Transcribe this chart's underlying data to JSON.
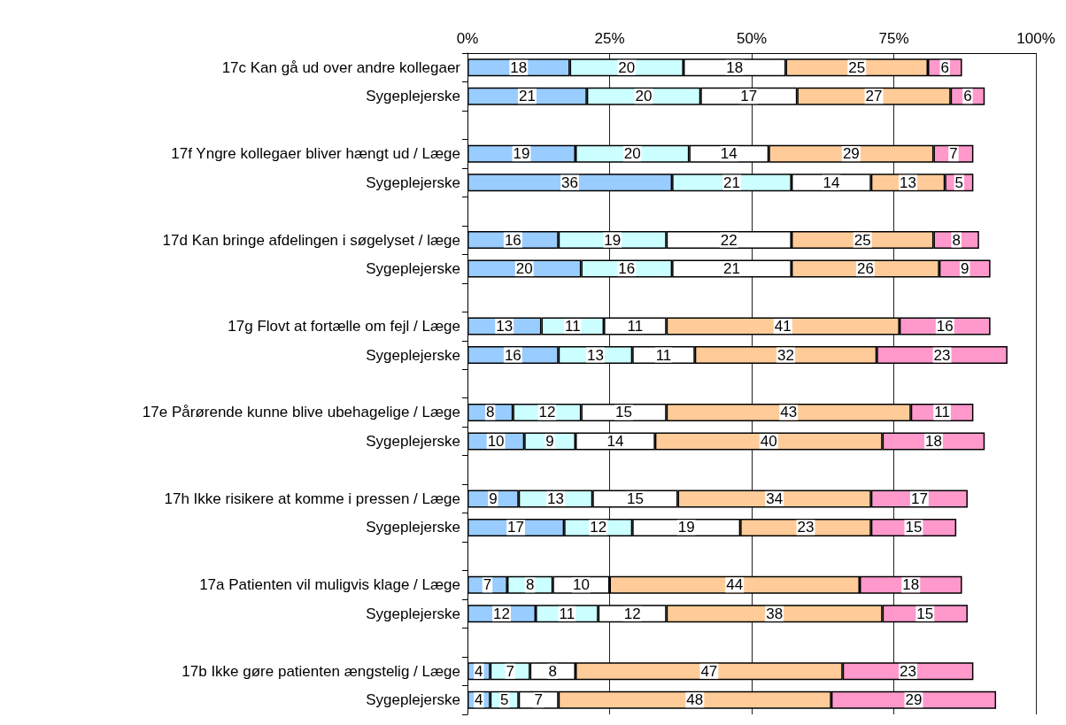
{
  "chart_data": {
    "type": "bar",
    "orientation": "horizontal",
    "stacked": true,
    "data_labels": true,
    "grid": "x",
    "categories": [
      "17c Kan gå ud over andre kollegaer",
      "Sygeplejerske",
      null,
      "17f Yngre kollegaer bliver hængt ud / Læge",
      "Sygeplejerske",
      null,
      "17d Kan bringe afdelingen i søgelyset / læge",
      "Sygeplejerske",
      null,
      "17g Flovt at fortælle om fejl / Læge",
      "Sygeplejerske",
      null,
      "17e Pårørende kunne blive ubehagelige / Læge",
      "Sygeplejerske",
      null,
      "17h Ikke risikere at komme i pressen / Læge",
      "Sygeplejerske",
      null,
      "17a Patienten vil muligvis klage / Læge",
      "Sygeplejerske",
      null,
      "17b Ikke gøre patienten ængstelig / Læge",
      "Sygeplejerske"
    ],
    "xlim": [
      0,
      100
    ],
    "xticks": [
      {
        "value": 0,
        "label": "0%"
      },
      {
        "value": 25,
        "label": "25%"
      },
      {
        "value": 50,
        "label": "50%"
      },
      {
        "value": 75,
        "label": "75%"
      },
      {
        "value": 100,
        "label": "100%"
      }
    ],
    "series": [
      {
        "color": "#99ccff",
        "values": [
          18,
          21,
          null,
          19,
          36,
          null,
          16,
          20,
          null,
          13,
          16,
          null,
          8,
          10,
          null,
          9,
          17,
          null,
          7,
          12,
          null,
          4,
          4
        ]
      },
      {
        "color": "#ccffff",
        "values": [
          20,
          20,
          null,
          20,
          21,
          null,
          19,
          16,
          null,
          11,
          13,
          null,
          12,
          9,
          null,
          13,
          12,
          null,
          8,
          11,
          null,
          7,
          5
        ]
      },
      {
        "color": "#ffffff",
        "values": [
          18,
          17,
          null,
          14,
          14,
          null,
          22,
          21,
          null,
          11,
          11,
          null,
          15,
          14,
          null,
          15,
          19,
          null,
          10,
          12,
          null,
          8,
          7
        ]
      },
      {
        "color": "#ffcc99",
        "values": [
          25,
          27,
          null,
          29,
          13,
          null,
          25,
          26,
          null,
          41,
          32,
          null,
          43,
          40,
          null,
          34,
          23,
          null,
          44,
          38,
          null,
          47,
          48
        ]
      },
      {
        "color": "#ff99cc",
        "values": [
          6,
          6,
          null,
          7,
          5,
          null,
          8,
          9,
          null,
          16,
          23,
          null,
          11,
          18,
          null,
          17,
          15,
          null,
          18,
          15,
          null,
          23,
          29
        ]
      }
    ]
  }
}
